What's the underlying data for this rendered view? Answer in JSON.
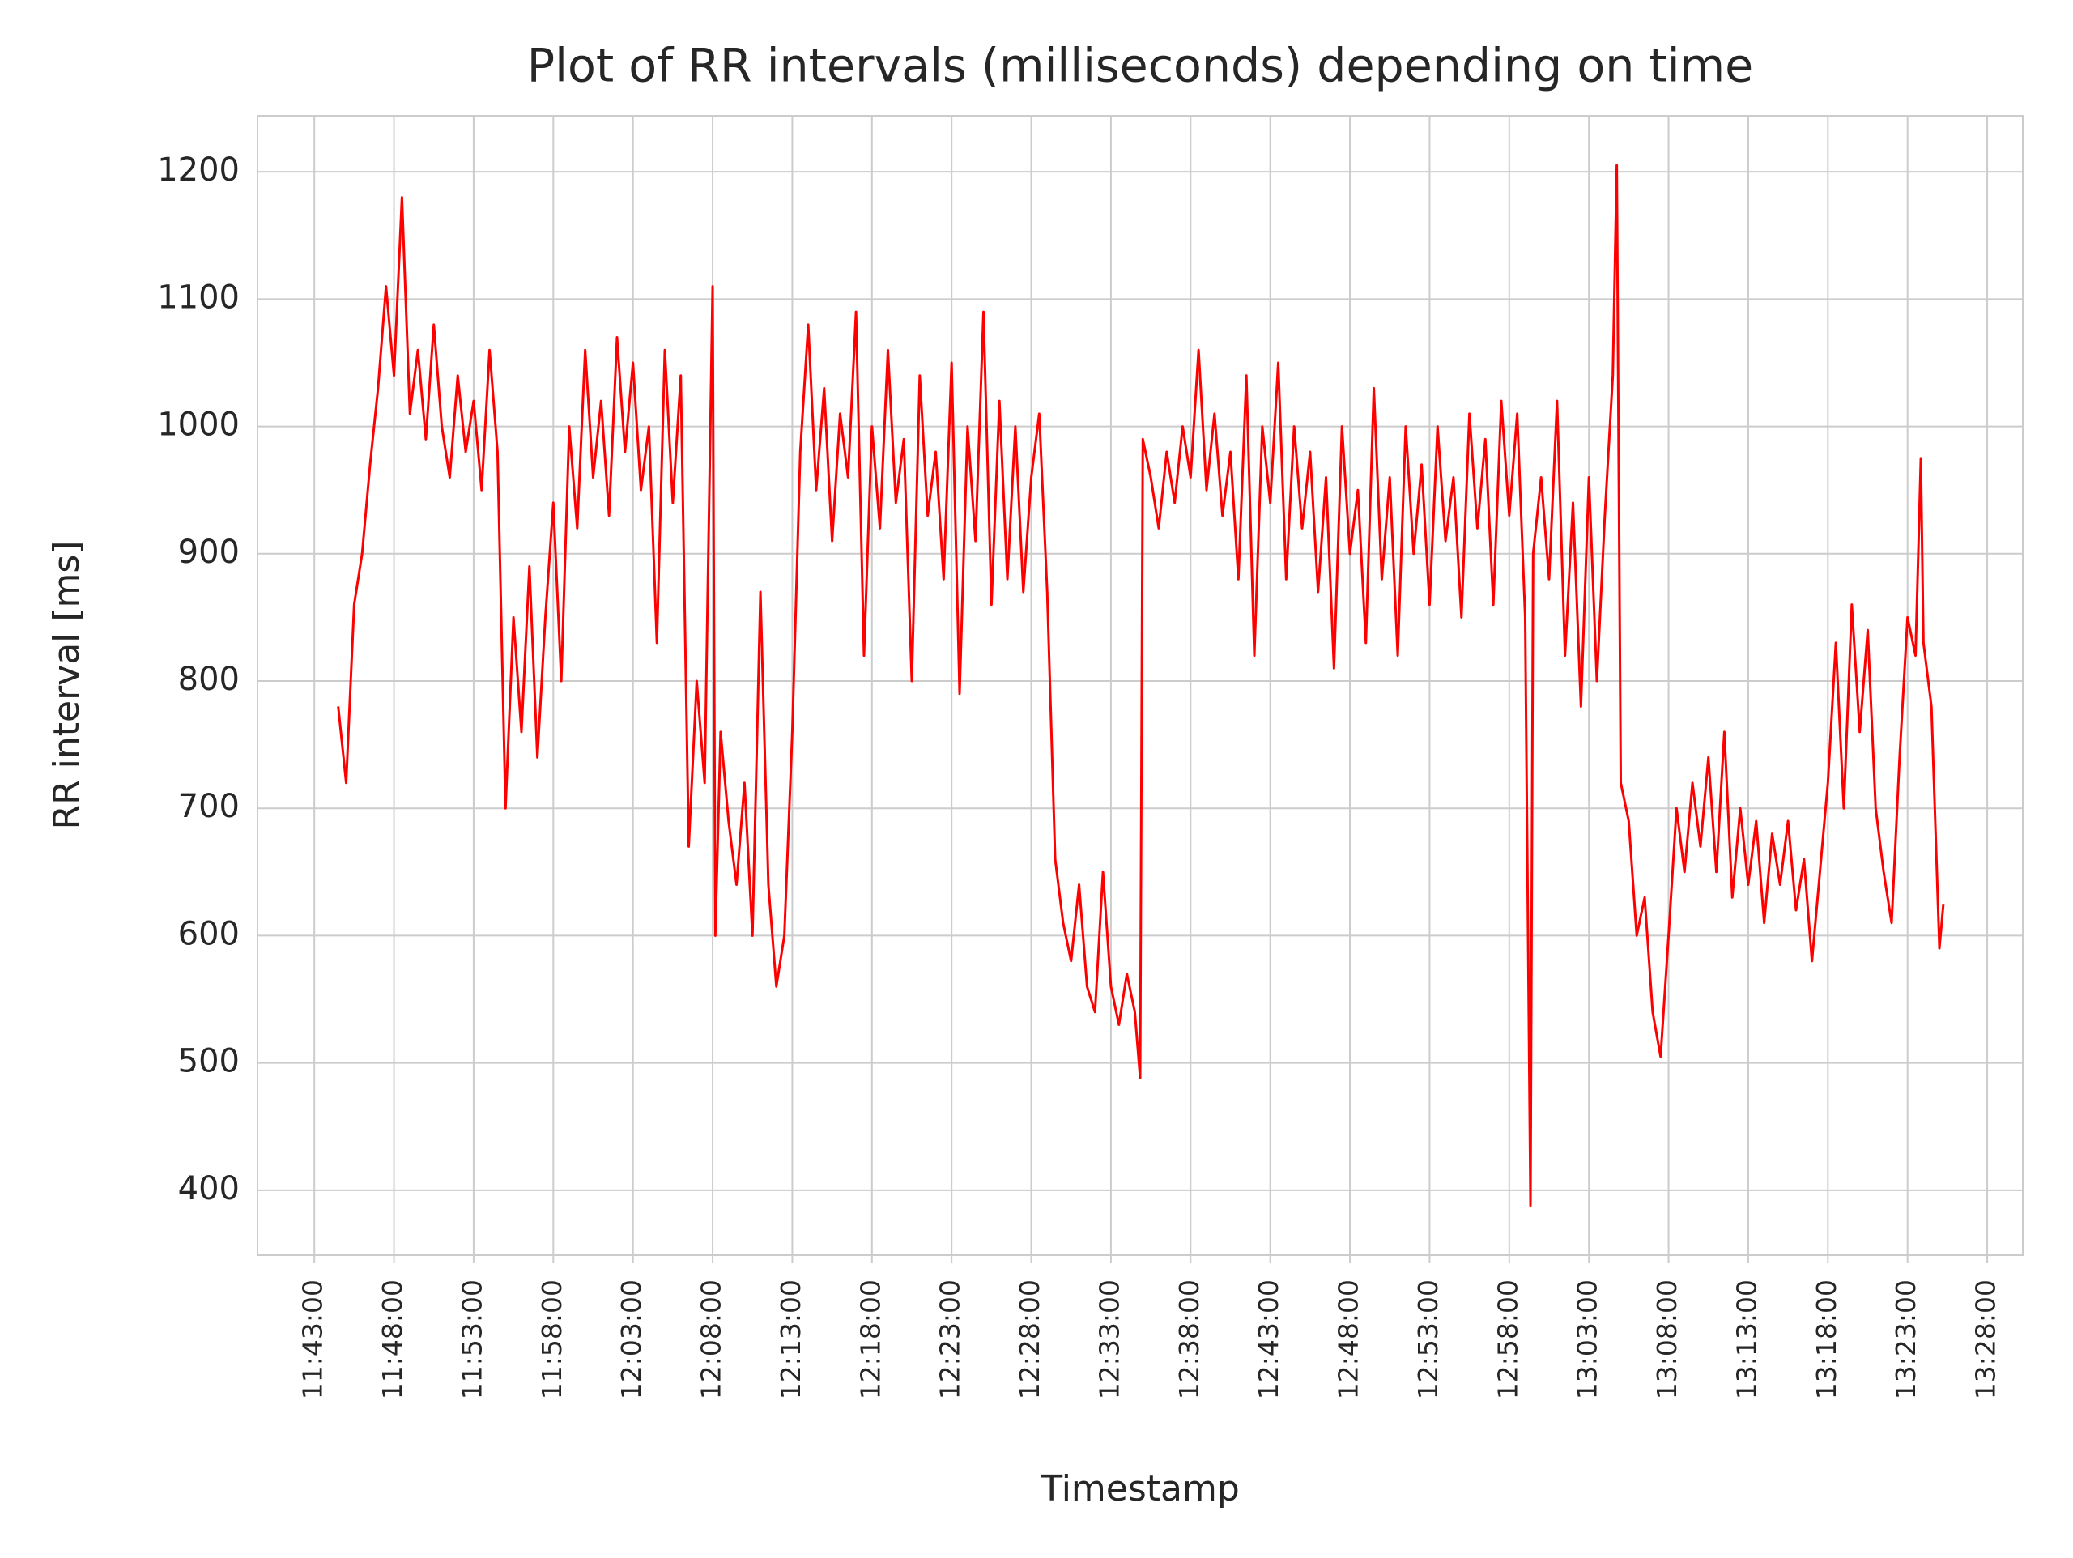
{
  "chart_data": {
    "type": "line",
    "title": "Plot of RR intervals (milliseconds) depending on time",
    "x_label": "Timestamp",
    "y_label": "RR interval [ms]",
    "grid": true,
    "xlim": [
      "11:39:26",
      "13:30:14"
    ],
    "ylim": [
      349,
      1244
    ],
    "xticks": [
      "11:43:00",
      "11:48:00",
      "11:53:00",
      "11:58:00",
      "12:03:00",
      "12:08:00",
      "12:13:00",
      "12:18:00",
      "12:23:00",
      "12:28:00",
      "12:33:00",
      "12:38:00",
      "12:43:00",
      "12:48:00",
      "12:53:00",
      "12:58:00",
      "13:03:00",
      "13:08:00",
      "13:13:00",
      "13:18:00",
      "13:23:00",
      "13:28:00"
    ],
    "yticks": [
      400,
      500,
      600,
      700,
      800,
      900,
      1000,
      1100,
      1200
    ],
    "x": [
      "11:44:30",
      "11:45:00",
      "11:45:30",
      "11:46:00",
      "11:46:30",
      "11:47:00",
      "11:47:30",
      "11:48:00",
      "11:48:30",
      "11:49:00",
      "11:49:30",
      "11:50:00",
      "11:50:30",
      "11:51:00",
      "11:51:30",
      "11:52:00",
      "11:52:30",
      "11:53:00",
      "11:53:30",
      "11:54:00",
      "11:54:30",
      "11:55:00",
      "11:55:30",
      "11:56:00",
      "11:56:30",
      "11:57:00",
      "11:57:30",
      "11:58:00",
      "11:58:30",
      "11:59:00",
      "11:59:30",
      "12:00:00",
      "12:00:30",
      "12:01:00",
      "12:01:30",
      "12:02:00",
      "12:02:30",
      "12:03:00",
      "12:03:30",
      "12:04:00",
      "12:04:30",
      "12:05:00",
      "12:05:30",
      "12:06:00",
      "12:06:30",
      "12:07:00",
      "12:07:30",
      "12:08:00",
      "12:08:10",
      "12:08:30",
      "12:09:00",
      "12:09:30",
      "12:10:00",
      "12:10:30",
      "12:11:00",
      "12:11:30",
      "12:12:00",
      "12:12:30",
      "12:13:00",
      "12:13:30",
      "12:14:00",
      "12:14:30",
      "12:15:00",
      "12:15:30",
      "12:16:00",
      "12:16:30",
      "12:17:00",
      "12:17:30",
      "12:18:00",
      "12:18:30",
      "12:19:00",
      "12:19:30",
      "12:20:00",
      "12:20:30",
      "12:21:00",
      "12:21:30",
      "12:22:00",
      "12:22:30",
      "12:23:00",
      "12:23:30",
      "12:24:00",
      "12:24:30",
      "12:25:00",
      "12:25:30",
      "12:26:00",
      "12:26:30",
      "12:27:00",
      "12:27:30",
      "12:28:00",
      "12:28:30",
      "12:29:00",
      "12:29:30",
      "12:30:00",
      "12:30:30",
      "12:31:00",
      "12:31:30",
      "12:32:00",
      "12:32:30",
      "12:33:00",
      "12:33:30",
      "12:34:00",
      "12:34:30",
      "12:34:50",
      "12:35:00",
      "12:35:30",
      "12:36:00",
      "12:36:30",
      "12:37:00",
      "12:37:30",
      "12:38:00",
      "12:38:30",
      "12:39:00",
      "12:39:30",
      "12:40:00",
      "12:40:30",
      "12:41:00",
      "12:41:30",
      "12:42:00",
      "12:42:30",
      "12:43:00",
      "12:43:30",
      "12:44:00",
      "12:44:30",
      "12:45:00",
      "12:45:30",
      "12:46:00",
      "12:46:30",
      "12:47:00",
      "12:47:30",
      "12:48:00",
      "12:48:30",
      "12:49:00",
      "12:49:30",
      "12:50:00",
      "12:50:30",
      "12:51:00",
      "12:51:30",
      "12:52:00",
      "12:52:30",
      "12:53:00",
      "12:53:30",
      "12:54:00",
      "12:54:30",
      "12:55:00",
      "12:55:30",
      "12:56:00",
      "12:56:30",
      "12:57:00",
      "12:57:30",
      "12:58:00",
      "12:58:30",
      "12:59:00",
      "12:59:20",
      "12:59:30",
      "13:00:00",
      "13:00:30",
      "13:01:00",
      "13:01:30",
      "13:02:00",
      "13:02:30",
      "13:03:00",
      "13:03:30",
      "13:04:00",
      "13:04:30",
      "13:04:45",
      "13:05:00",
      "13:05:30",
      "13:06:00",
      "13:06:30",
      "13:07:00",
      "13:07:30",
      "13:08:00",
      "13:08:30",
      "13:09:00",
      "13:09:30",
      "13:10:00",
      "13:10:30",
      "13:11:00",
      "13:11:30",
      "13:12:00",
      "13:12:30",
      "13:13:00",
      "13:13:30",
      "13:14:00",
      "13:14:30",
      "13:15:00",
      "13:15:30",
      "13:16:00",
      "13:16:30",
      "13:17:00",
      "13:17:30",
      "13:18:00",
      "13:18:30",
      "13:19:00",
      "13:19:30",
      "13:20:00",
      "13:20:30",
      "13:21:00",
      "13:21:30",
      "13:22:00",
      "13:22:30",
      "13:23:00",
      "13:23:30",
      "13:23:50",
      "13:24:00",
      "13:24:30",
      "13:25:00",
      "13:25:15"
    ],
    "series": [
      {
        "name": "RR interval",
        "color": "#ff0000",
        "values": [
          780,
          720,
          860,
          900,
          970,
          1030,
          1110,
          1040,
          1180,
          1010,
          1060,
          990,
          1080,
          1000,
          960,
          1040,
          980,
          1020,
          950,
          1060,
          980,
          700,
          850,
          760,
          890,
          740,
          850,
          940,
          800,
          1000,
          920,
          1060,
          960,
          1020,
          930,
          1070,
          980,
          1050,
          950,
          1000,
          830,
          1060,
          940,
          1040,
          670,
          800,
          720,
          1110,
          600,
          760,
          690,
          640,
          720,
          600,
          870,
          640,
          560,
          600,
          760,
          980,
          1080,
          950,
          1030,
          910,
          1010,
          960,
          1090,
          820,
          1000,
          920,
          1060,
          940,
          990,
          800,
          1040,
          930,
          980,
          880,
          1050,
          790,
          1000,
          910,
          1090,
          860,
          1020,
          880,
          1000,
          870,
          960,
          1010,
          870,
          660,
          610,
          580,
          640,
          560,
          540,
          650,
          560,
          530,
          570,
          540,
          488,
          990,
          960,
          920,
          980,
          940,
          1000,
          960,
          1060,
          950,
          1010,
          930,
          980,
          880,
          1040,
          820,
          1000,
          940,
          1050,
          880,
          1000,
          920,
          980,
          870,
          960,
          810,
          1000,
          900,
          950,
          830,
          1030,
          880,
          960,
          820,
          1000,
          900,
          970,
          860,
          1000,
          910,
          960,
          850,
          1010,
          920,
          990,
          860,
          1020,
          930,
          1010,
          850,
          388,
          900,
          960,
          880,
          1020,
          820,
          940,
          780,
          960,
          800,
          930,
          1040,
          1205,
          720,
          690,
          600,
          630,
          540,
          505,
          600,
          700,
          650,
          720,
          670,
          740,
          650,
          760,
          630,
          700,
          640,
          690,
          610,
          680,
          640,
          690,
          620,
          660,
          580,
          650,
          720,
          830,
          700,
          860,
          760,
          840,
          700,
          650,
          610,
          740,
          850,
          820,
          975,
          830,
          780,
          590,
          625
        ]
      }
    ]
  }
}
